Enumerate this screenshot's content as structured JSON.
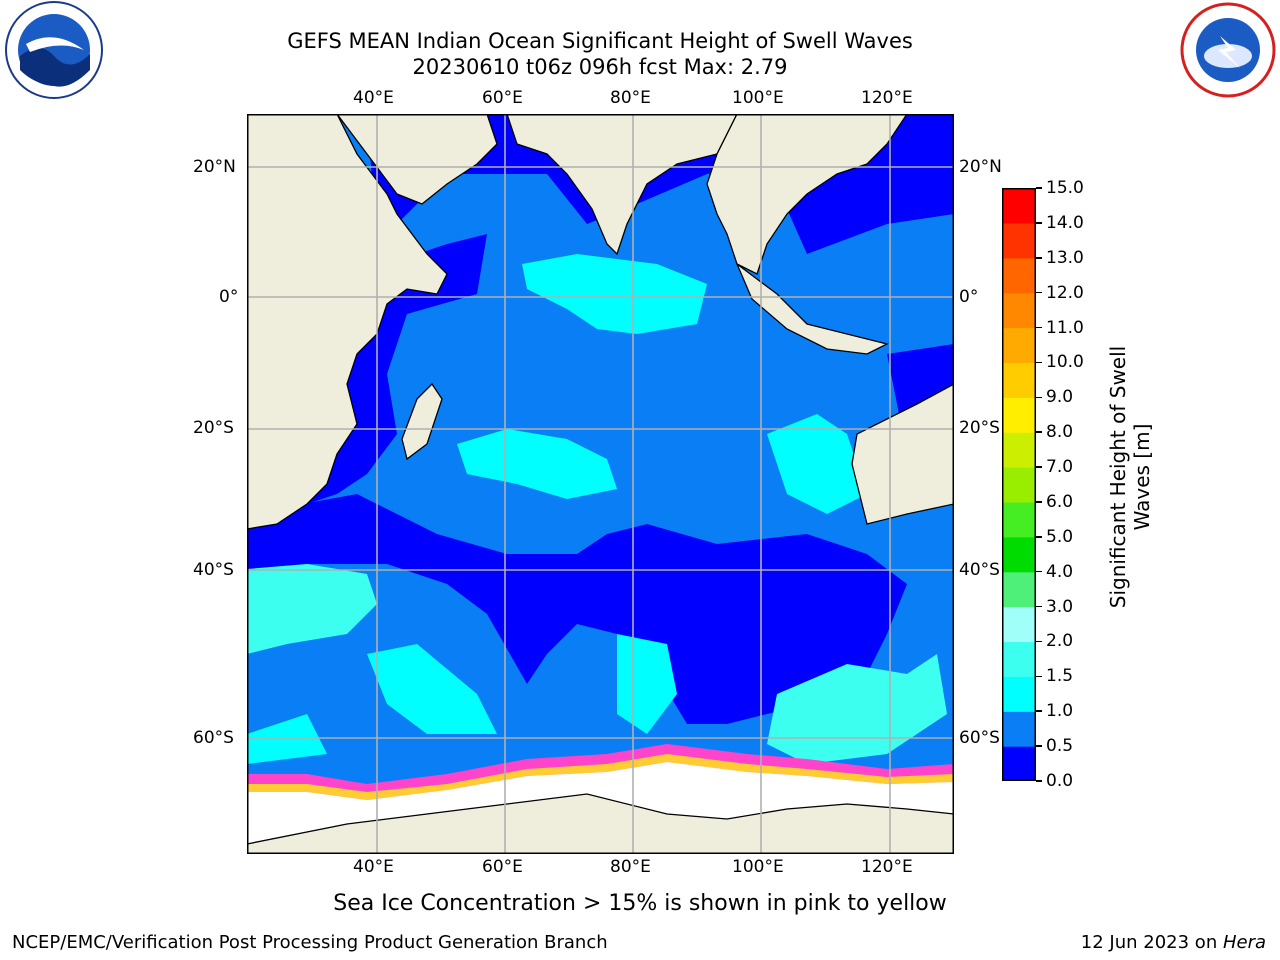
{
  "header": {
    "title_line1": "GEFS MEAN Indian Ocean Significant Height of Swell Waves",
    "title_line2": "20230610 t06z 096h fcst   Max: 2.79"
  },
  "logos": {
    "left": {
      "name": "NOAA",
      "icon": "noaa-logo-icon"
    },
    "right": {
      "name": "NATIONAL WEATHER SERVICE",
      "icon": "nws-logo-icon"
    }
  },
  "map": {
    "lon_labels": [
      "40°E",
      "60°E",
      "80°E",
      "100°E",
      "120°E"
    ],
    "lat_labels": [
      "20°N",
      "0°",
      "20°S",
      "40°S",
      "60°S"
    ],
    "colors": {
      "land": "#efeedc",
      "ice": "#ffffff",
      "grid": "#b0b0b0"
    }
  },
  "colorbar": {
    "label_line1": "Significant Height of Swell",
    "label_line2": "Waves [m]",
    "ticks": [
      "0.0",
      "0.5",
      "1.0",
      "1.5",
      "2.0",
      "3.0",
      "4.0",
      "5.0",
      "6.0",
      "7.0",
      "8.0",
      "9.0",
      "10.0",
      "11.0",
      "12.0",
      "13.0",
      "14.0",
      "15.0"
    ],
    "colors": [
      "#0000ff",
      "#0a7ff5",
      "#00ffff",
      "#3dfff0",
      "#a0fff8",
      "#4ff07a",
      "#00dc00",
      "#44ee22",
      "#99ee00",
      "#ccee00",
      "#ffee00",
      "#ffcc00",
      "#ffaa00",
      "#ff8800",
      "#ff6600",
      "#ff3300",
      "#ff0000"
    ]
  },
  "annotation": "Sea Ice Concentration > 15% is shown in pink to yellow",
  "footer": {
    "left": "NCEP/EMC/Verification Post Processing Product Generation Branch",
    "right_prefix": "12 Jun 2023 on ",
    "right_host": "Hera"
  }
}
